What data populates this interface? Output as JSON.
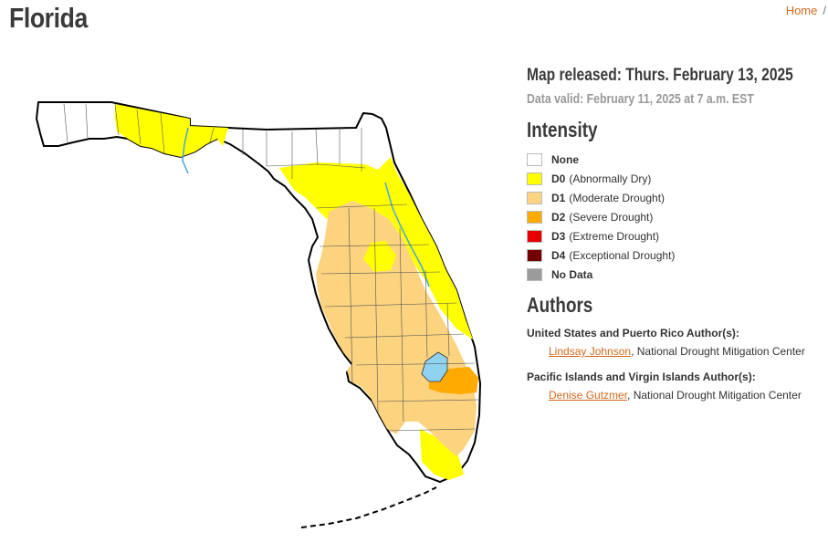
{
  "page": {
    "title": "Florida"
  },
  "breadcrumb": {
    "home": "Home",
    "separator": "/"
  },
  "map": {
    "released": "Map released: Thurs. February 13, 2025",
    "valid": "Data valid: February 11, 2025 at 7 a.m. EST"
  },
  "intensity": {
    "heading": "Intensity",
    "items": [
      {
        "code": "",
        "label": "None",
        "color": "#ffffff"
      },
      {
        "code": "D0",
        "label": "(Abnormally Dry)",
        "color": "#ffff00"
      },
      {
        "code": "D1",
        "label": "(Moderate Drought)",
        "color": "#fcd37f"
      },
      {
        "code": "D2",
        "label": "(Severe Drought)",
        "color": "#ffaa00"
      },
      {
        "code": "D3",
        "label": "(Extreme Drought)",
        "color": "#e60000"
      },
      {
        "code": "D4",
        "label": "(Exceptional Drought)",
        "color": "#730000"
      },
      {
        "code": "",
        "label": "No Data",
        "color": "#9b9b9b"
      }
    ]
  },
  "authors": {
    "heading": "Authors",
    "groups": [
      {
        "label": "United States and Puerto Rico Author(s):",
        "name": "Lindsay Johnson",
        "org": ", National Drought Mitigation Center"
      },
      {
        "label": "Pacific Islands and Virgin Islands Author(s):",
        "name": "Denise Gutzmer",
        "org": ", National Drought Mitigation Center"
      }
    ]
  },
  "colors": {
    "accent": "#d2691e",
    "water": "#8fd3f0"
  }
}
